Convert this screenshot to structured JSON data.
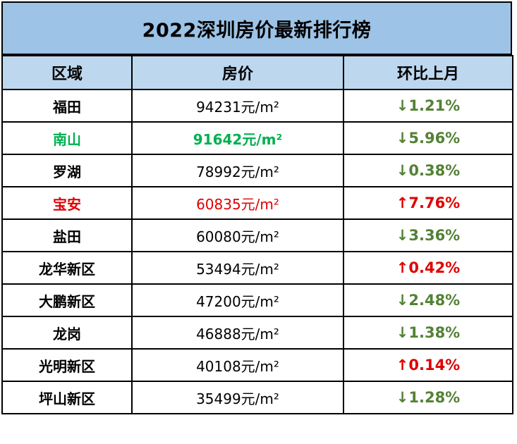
{
  "title": "2022深圳房价最新排行榜",
  "headers": {
    "district": "区域",
    "price": "房价",
    "change": "环比上月"
  },
  "colors": {
    "title_bg": "#9dc3e6",
    "header_bg": "#bdd7ee",
    "down": "#538135",
    "up": "#e00000",
    "highlight_green": "#00b050"
  },
  "rows": [
    {
      "district": "福田",
      "price": "94231元/m²",
      "change": "↓1.21%",
      "direction": "down",
      "highlight": ""
    },
    {
      "district": "南山",
      "price": "91642元/m²",
      "change": "↓5.96%",
      "direction": "down",
      "highlight": "green"
    },
    {
      "district": "罗湖",
      "price": "78992元/m²",
      "change": "↓0.38%",
      "direction": "down",
      "highlight": ""
    },
    {
      "district": "宝安",
      "price": "60835元/m²",
      "change": "↑7.76%",
      "direction": "up",
      "highlight": "red"
    },
    {
      "district": "盐田",
      "price": "60080元/m²",
      "change": "↓3.36%",
      "direction": "down",
      "highlight": ""
    },
    {
      "district": "龙华新区",
      "price": "53494元/m²",
      "change": "↑0.42%",
      "direction": "up",
      "highlight": ""
    },
    {
      "district": "大鹏新区",
      "price": "47200元/m²",
      "change": "↓2.48%",
      "direction": "down",
      "highlight": ""
    },
    {
      "district": "龙岗",
      "price": "46888元/m²",
      "change": "↓1.38%",
      "direction": "down",
      "highlight": ""
    },
    {
      "district": "光明新区",
      "price": "40108元/m²",
      "change": "↑0.14%",
      "direction": "up",
      "highlight": ""
    },
    {
      "district": "坪山新区",
      "price": "35499元/m²",
      "change": "↓1.28%",
      "direction": "down",
      "highlight": ""
    }
  ]
}
